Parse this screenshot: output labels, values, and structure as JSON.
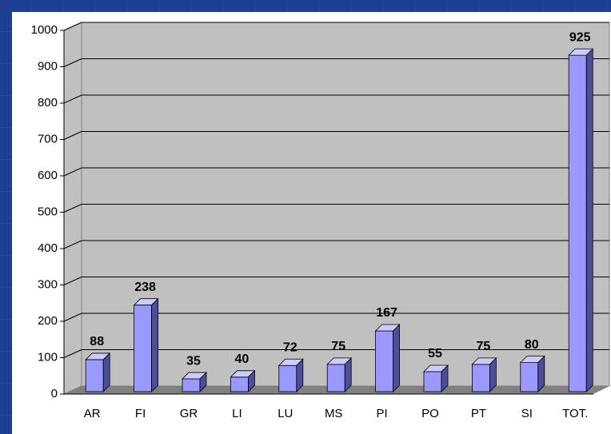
{
  "chart_data": {
    "type": "bar3d",
    "categories": [
      "AR",
      "FI",
      "GR",
      "LI",
      "LU",
      "MS",
      "PI",
      "PO",
      "PT",
      "SI",
      "TOT."
    ],
    "values": [
      88,
      238,
      35,
      40,
      72,
      75,
      167,
      55,
      75,
      80,
      925
    ],
    "color": "#9999ff",
    "ylim": [
      0,
      1000
    ],
    "yticks": [
      0,
      100,
      200,
      300,
      400,
      500,
      600,
      700,
      800,
      900,
      1000
    ],
    "grid": true
  }
}
